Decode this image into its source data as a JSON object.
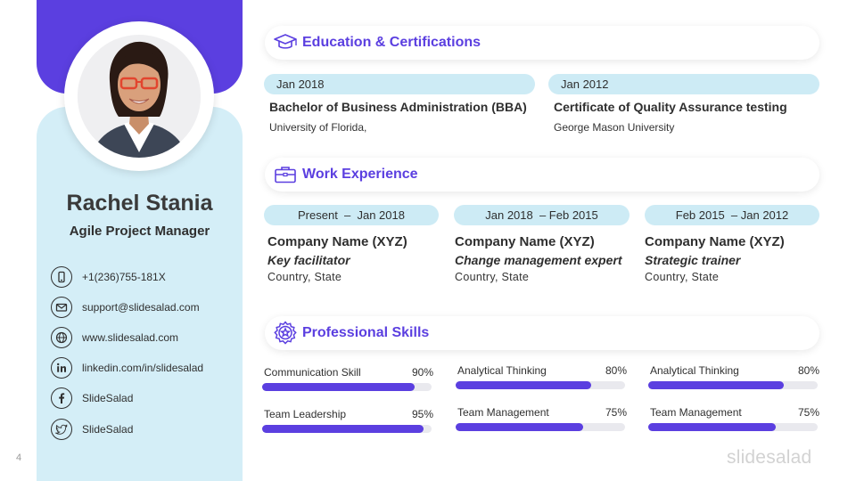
{
  "profile": {
    "name": "Rachel Stania",
    "role": "Agile Project Manager"
  },
  "contacts": [
    {
      "icon": "phone-icon",
      "text": "+1(236)755-181X"
    },
    {
      "icon": "mail-icon",
      "text": "support@slidesalad.com"
    },
    {
      "icon": "globe-icon",
      "text": "www.slidesalad.com"
    },
    {
      "icon": "linkedin-icon",
      "text": "linkedin.com/in/slidesalad"
    },
    {
      "icon": "facebook-icon",
      "text": "SlideSalad"
    },
    {
      "icon": "twitter-icon",
      "text": "SlideSalad"
    }
  ],
  "education": {
    "title": "Education & Certifications",
    "icon": "graduation-cap-icon",
    "items": [
      {
        "date": "Jan 2018",
        "title": "Bachelor of Business Administration (BBA)",
        "place": "University of Florida,"
      },
      {
        "date": "Jan 2012",
        "title": "Certificate of Quality Assurance testing",
        "place": "George Mason University"
      }
    ]
  },
  "work": {
    "title": "Work Experience",
    "icon": "briefcase-icon",
    "items": [
      {
        "date": "Present  –  Jan 2018",
        "company": "Company Name (XYZ)",
        "role": "Key facilitator",
        "location": "Country, State"
      },
      {
        "date": "Jan 2018  – Feb 2015",
        "company": "Company Name (XYZ)",
        "role": "Change management expert",
        "location": "Country, State"
      },
      {
        "date": "Feb 2015  – Jan 2012",
        "company": "Company Name (XYZ)",
        "role": "Strategic trainer",
        "location": "Country, State"
      }
    ]
  },
  "skills": {
    "title": "Professional Skills",
    "icon": "gear-star-icon",
    "columns": [
      [
        {
          "label": "Communication Skill",
          "percent_label": "90%",
          "value": 0.9
        },
        {
          "label": "Team Leadership",
          "percent_label": "95%",
          "value": 0.95
        }
      ],
      [
        {
          "label": "Analytical Thinking",
          "percent_label": "80%",
          "value": 0.8
        },
        {
          "label": "Team Management",
          "percent_label": "75%",
          "value": 0.75
        }
      ],
      [
        {
          "label": "Analytical Thinking",
          "percent_label": "80%",
          "value": 0.8
        },
        {
          "label": "Team Management",
          "percent_label": "75%",
          "value": 0.75
        }
      ]
    ]
  },
  "footer": {
    "page_number": "4",
    "brand": "slidesalad"
  },
  "colors": {
    "accent": "#5b3fe0",
    "panel": "#d4eef7",
    "pill": "#cdebf5"
  }
}
